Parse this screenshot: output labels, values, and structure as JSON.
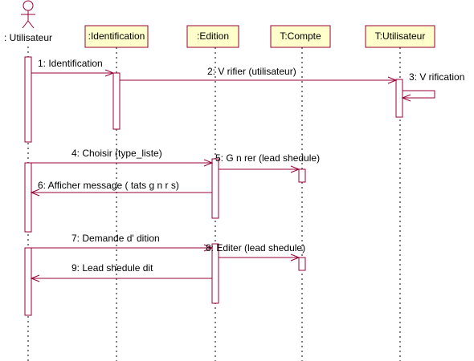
{
  "actor": {
    "label": ": Utilisateur"
  },
  "objects": [
    {
      "id": "ident",
      "label": ":Identification"
    },
    {
      "id": "edition",
      "label": ":Edition"
    },
    {
      "id": "compte",
      "label": "T:Compte"
    },
    {
      "id": "tutil",
      "label": "T:Utilisateur"
    }
  ],
  "messages": [
    {
      "id": "m1",
      "label": "1: Identification"
    },
    {
      "id": "m2",
      "label": "2: V   rifier (utilisateur)"
    },
    {
      "id": "m3",
      "label": "3: V   rification"
    },
    {
      "id": "m4",
      "label": "4: Choisir (type_liste)"
    },
    {
      "id": "m5",
      "label": "5: G   n   rer (lead shedule)"
    },
    {
      "id": "m6",
      "label": "6: Afficher message (   tats g   n   r   s)"
    },
    {
      "id": "m7",
      "label": "7: Demande d'   dition"
    },
    {
      "id": "m8",
      "label": "8: Editer (lead shedule)"
    },
    {
      "id": "m9",
      "label": "9: Lead shedule    dit"
    }
  ],
  "colors": {
    "accent": "#990033",
    "object_fill": "#ffffcc"
  }
}
